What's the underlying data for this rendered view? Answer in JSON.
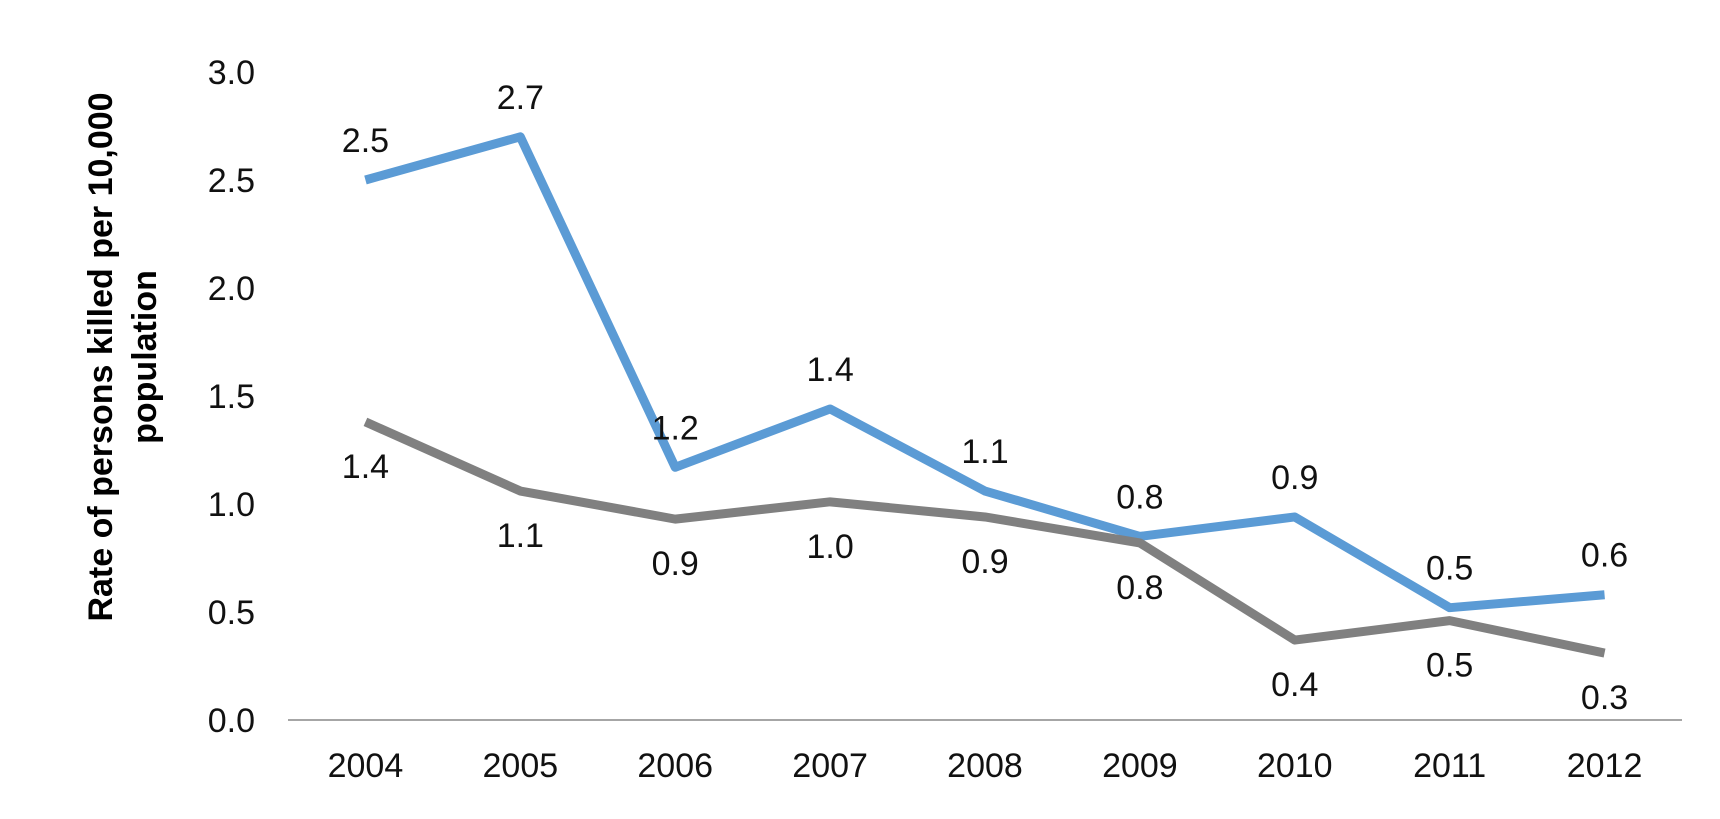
{
  "chart_data": {
    "type": "line",
    "title": "",
    "xlabel": "",
    "ylabel_lines": [
      "Rate of persons killed per 10,000",
      "population"
    ],
    "categories": [
      "2004",
      "2005",
      "2006",
      "2007",
      "2008",
      "2009",
      "2010",
      "2011",
      "2012"
    ],
    "ylim": [
      0,
      3.0
    ],
    "y_ticks": [
      "0.0",
      "0.5",
      "1.0",
      "1.5",
      "2.0",
      "2.5",
      "3.0"
    ],
    "y_tick_values": [
      0,
      0.5,
      1.0,
      1.5,
      2.0,
      2.5,
      3.0
    ],
    "grid": false,
    "legend": "none",
    "series": [
      {
        "color": "#5b9bd5",
        "label_position": "above",
        "values": [
          2.5,
          2.7,
          1.17,
          1.44,
          1.06,
          0.85,
          0.94,
          0.52,
          0.58
        ],
        "labels": [
          "2.5",
          "2.7",
          "1.2",
          "1.4",
          "1.1",
          "0.8",
          "0.9",
          "0.5",
          "0.6"
        ]
      },
      {
        "color": "#808080",
        "label_position": "below",
        "values": [
          1.38,
          1.06,
          0.93,
          1.01,
          0.94,
          0.82,
          0.37,
          0.46,
          0.31
        ],
        "labels": [
          "1.4",
          "1.1",
          "0.9",
          "1.0",
          "0.9",
          "0.8",
          "0.4",
          "0.5",
          "0.3"
        ]
      }
    ]
  }
}
